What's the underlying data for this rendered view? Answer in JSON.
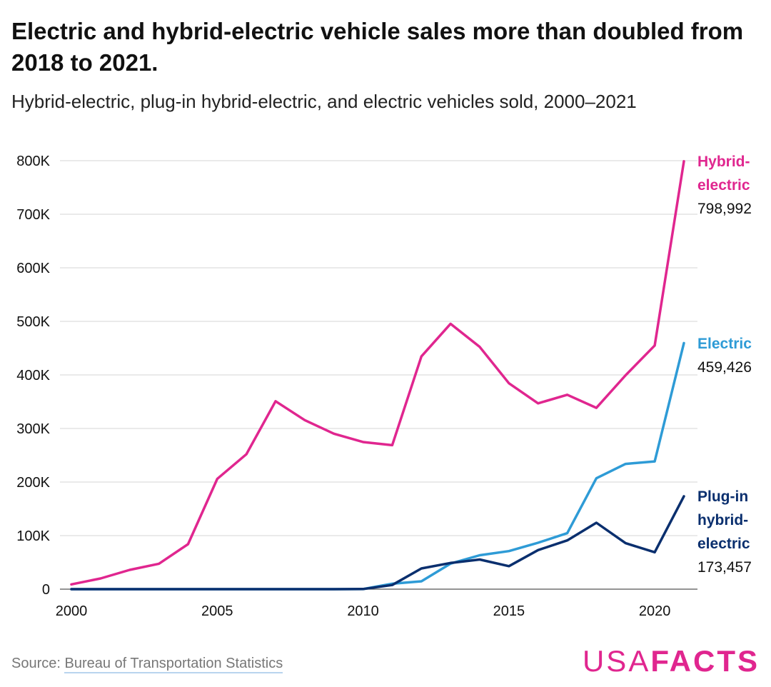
{
  "header": {
    "title": "Electric and hybrid-electric vehicle sales more than doubled from 2018 to 2021.",
    "subtitle": "Hybrid-electric, plug-in hybrid-electric, and electric vehicles sold, 2000–2021"
  },
  "footer": {
    "source_prefix": "Source: ",
    "source_link": "Bureau of Transportation Statistics",
    "logo_light": "USA",
    "logo_bold": "FACTS"
  },
  "colors": {
    "hybrid": "#e0268f",
    "electric": "#2e9bd6",
    "plugin": "#0a2f6e",
    "grid": "#d6d6d6"
  },
  "chart_data": {
    "type": "line",
    "title": "Electric and hybrid-electric vehicle sales more than doubled from 2018 to 2021.",
    "subtitle": "Hybrid-electric, plug-in hybrid-electric, and electric vehicles sold, 2000–2021",
    "xlabel": "",
    "ylabel": "",
    "xlim": [
      2000,
      2021
    ],
    "ylim": [
      0,
      800000
    ],
    "x_ticks": [
      2000,
      2005,
      2010,
      2015,
      2020
    ],
    "y_ticks": [
      0,
      100000,
      200000,
      300000,
      400000,
      500000,
      600000,
      700000,
      800000
    ],
    "y_tick_labels": [
      "0",
      "100K",
      "200K",
      "300K",
      "400K",
      "500K",
      "600K",
      "700K",
      "800K"
    ],
    "grid": true,
    "legend": "direct labels at line ends (right)",
    "x": [
      2000,
      2001,
      2002,
      2003,
      2004,
      2005,
      2006,
      2007,
      2008,
      2009,
      2010,
      2011,
      2012,
      2013,
      2014,
      2015,
      2016,
      2017,
      2018,
      2019,
      2020,
      2021
    ],
    "series": [
      {
        "key": "hybrid",
        "name": "Hybrid-electric",
        "label_lines": [
          "Hybrid-",
          "electric"
        ],
        "end_label": "798,992",
        "values": [
          9000,
          20000,
          36000,
          47500,
          84000,
          205800,
          251900,
          351000,
          315600,
          290300,
          274600,
          268800,
          434500,
          495500,
          452200,
          384400,
          346900,
          362900,
          338500,
          399300,
          454900,
          798992
        ]
      },
      {
        "key": "electric",
        "name": "Electric",
        "label_lines": [
          "Electric"
        ],
        "end_label": "459,426",
        "values": [
          0,
          0,
          0,
          0,
          0,
          0,
          0,
          0,
          0,
          0,
          200,
          10100,
          14600,
          47700,
          63400,
          71100,
          86700,
          104500,
          207100,
          233800,
          238500,
          459426
        ]
      },
      {
        "key": "plugin",
        "name": "Plug-in hybrid-electric",
        "label_lines": [
          "Plug-in",
          "hybrid-",
          "electric"
        ],
        "end_label": "173,457",
        "values": [
          0,
          0,
          0,
          0,
          0,
          0,
          0,
          0,
          0,
          0,
          300,
          7700,
          38600,
          49000,
          55400,
          42900,
          72900,
          91100,
          124000,
          85800,
          69000,
          173457
        ]
      }
    ]
  }
}
